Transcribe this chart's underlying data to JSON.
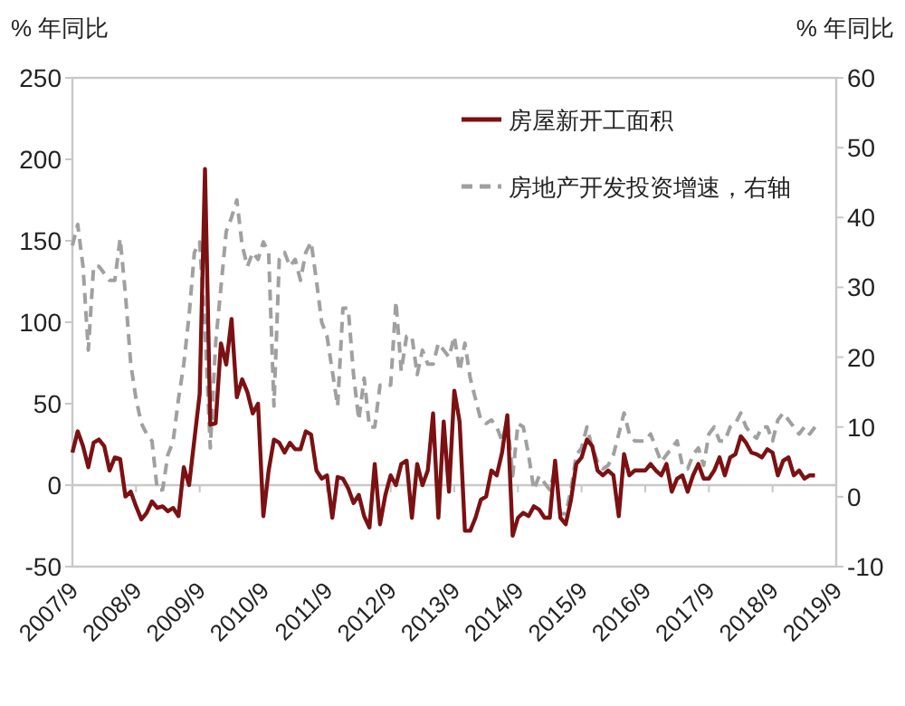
{
  "chart_data": {
    "type": "line",
    "ylabel": "% 年同比",
    "y2label": "% 年同比",
    "legend": "top right",
    "x": [
      "2007-09",
      "2007-10",
      "2007-11",
      "2007-12",
      "2008-01",
      "2008-02",
      "2008-03",
      "2008-04",
      "2008-05",
      "2008-06",
      "2008-07",
      "2008-08",
      "2008-09",
      "2008-10",
      "2008-11",
      "2008-12",
      "2009-01",
      "2009-02",
      "2009-03",
      "2009-04",
      "2009-05",
      "2009-06",
      "2009-07",
      "2009-08",
      "2009-09",
      "2009-10",
      "2009-11",
      "2009-12",
      "2010-01",
      "2010-02",
      "2010-03",
      "2010-04",
      "2010-05",
      "2010-06",
      "2010-07",
      "2010-08",
      "2010-09",
      "2010-10",
      "2010-11",
      "2010-12",
      "2011-01",
      "2011-02",
      "2011-03",
      "2011-04",
      "2011-05",
      "2011-06",
      "2011-07",
      "2011-08",
      "2011-09",
      "2011-10",
      "2011-11",
      "2011-12",
      "2012-01",
      "2012-02",
      "2012-03",
      "2012-04",
      "2012-05",
      "2012-06",
      "2012-07",
      "2012-08",
      "2012-09",
      "2012-10",
      "2012-11",
      "2012-12",
      "2013-01",
      "2013-02",
      "2013-03",
      "2013-04",
      "2013-05",
      "2013-06",
      "2013-07",
      "2013-08",
      "2013-09",
      "2013-10",
      "2013-11",
      "2013-12",
      "2014-01",
      "2014-02",
      "2014-03",
      "2014-04",
      "2014-05",
      "2014-06",
      "2014-07",
      "2014-08",
      "2014-09",
      "2014-10",
      "2014-11",
      "2014-12",
      "2015-01",
      "2015-02",
      "2015-03",
      "2015-04",
      "2015-05",
      "2015-06",
      "2015-07",
      "2015-08",
      "2015-09",
      "2015-10",
      "2015-11",
      "2015-12",
      "2016-01",
      "2016-02",
      "2016-03",
      "2016-04",
      "2016-05",
      "2016-06",
      "2016-07",
      "2016-08",
      "2016-09",
      "2016-10",
      "2016-11",
      "2016-12",
      "2017-01",
      "2017-02",
      "2017-03",
      "2017-04",
      "2017-05",
      "2017-06",
      "2017-07",
      "2017-08",
      "2017-09",
      "2017-10",
      "2017-11",
      "2017-12",
      "2018-01",
      "2018-02",
      "2018-03",
      "2018-04",
      "2018-05",
      "2018-06",
      "2018-07",
      "2018-08",
      "2018-09",
      "2018-10",
      "2018-11",
      "2018-12",
      "2019-01",
      "2019-02",
      "2019-03",
      "2019-04",
      "2019-05"
    ],
    "series": [
      {
        "name": "房屋新开工面积",
        "color": "#7b1113",
        "line_style": "solid",
        "values": [
          20,
          33,
          24,
          11,
          26,
          28,
          24,
          9,
          17,
          16,
          -7,
          -4,
          -13,
          -21,
          -17,
          -10,
          -14,
          -13,
          -16,
          -14,
          -19,
          11,
          0,
          28,
          56,
          194,
          37,
          38,
          87,
          74,
          102,
          54,
          65,
          57,
          44,
          50,
          -19,
          9,
          28,
          26,
          20,
          26,
          22,
          22,
          33,
          31,
          9,
          4,
          6,
          -20,
          5,
          4,
          -2,
          -11,
          -6,
          -19,
          -26,
          13,
          -24,
          -6,
          6,
          0,
          13,
          15,
          -20,
          13,
          0,
          9,
          44,
          -20,
          39,
          -4,
          58,
          39,
          -28,
          -28,
          -20,
          -9,
          -7,
          9,
          6,
          20,
          43,
          -31,
          -20,
          -17,
          -19,
          -13,
          -15,
          -20,
          -20,
          15,
          -20,
          -24,
          -9,
          13,
          17,
          28,
          24,
          9,
          6,
          9,
          6,
          -19,
          19,
          6,
          9,
          9,
          9,
          13,
          9,
          6,
          13,
          -4,
          4,
          6,
          -4,
          6,
          13,
          4,
          4,
          9,
          17,
          6,
          17,
          19,
          30,
          26,
          20,
          19,
          17,
          22,
          20,
          6,
          15,
          17,
          6,
          9,
          4,
          6,
          6
        ]
      },
      {
        "name": "房地产开发投资增速，右轴",
        "color": "#a0a0a0",
        "line_style": "dashed",
        "axis": "y2",
        "values": [
          36,
          39,
          33,
          21,
          33,
          33,
          32,
          31,
          31,
          37,
          29,
          19,
          14,
          10.5,
          9,
          8,
          1,
          1,
          6,
          8,
          14,
          19,
          26,
          35,
          36.5,
          24,
          7,
          22,
          30,
          38,
          40,
          42.5,
          36,
          33,
          35,
          34,
          36.5,
          35,
          13,
          34,
          35,
          33,
          34,
          31,
          35,
          36.5,
          31,
          25,
          23,
          18,
          13,
          27,
          27,
          17.5,
          11,
          17,
          10,
          10,
          16,
          16,
          16,
          28,
          18,
          23,
          23,
          17.5,
          21,
          19,
          19,
          22,
          21,
          20,
          23,
          18,
          22,
          17,
          14,
          11,
          10.5,
          11,
          10,
          8,
          11,
          3,
          10.5,
          10,
          6,
          1,
          3,
          2,
          1,
          4,
          -2.4,
          -2.4,
          1,
          6,
          7,
          10,
          7,
          5,
          4,
          4.5,
          6,
          9,
          12,
          9,
          8,
          8,
          8,
          9,
          7,
          5,
          6,
          7,
          8,
          4.5,
          4,
          6,
          7,
          4.5,
          9,
          10,
          8,
          8,
          10,
          10.5,
          12,
          10,
          9,
          8.4,
          10,
          10,
          8,
          11,
          12,
          11,
          10,
          9,
          10,
          9,
          10
        ]
      }
    ],
    "xlim": [
      "2007-09",
      "2019-09"
    ],
    "xticks": [
      {
        "value": "2007-09",
        "label": "2007/9"
      },
      {
        "value": "2008-09",
        "label": "2008/9"
      },
      {
        "value": "2009-09",
        "label": "2009/9"
      },
      {
        "value": "2010-09",
        "label": "2010/9"
      },
      {
        "value": "2011-09",
        "label": "2011/9"
      },
      {
        "value": "2012-09",
        "label": "2012/9"
      },
      {
        "value": "2013-09",
        "label": "2013/9"
      },
      {
        "value": "2014-09",
        "label": "2014/9"
      },
      {
        "value": "2015-09",
        "label": "2015/9"
      },
      {
        "value": "2016-09",
        "label": "2016/9"
      },
      {
        "value": "2017-09",
        "label": "2017/9"
      },
      {
        "value": "2018-09",
        "label": "2018/9"
      },
      {
        "value": "2019-09",
        "label": "2019/9"
      }
    ],
    "ylim": [
      -50,
      250
    ],
    "yticks": [
      -50,
      0,
      50,
      100,
      150,
      200,
      250
    ],
    "y2lim": [
      -10,
      60
    ],
    "y2ticks": [
      -10,
      0,
      10,
      20,
      30,
      40,
      50,
      60
    ]
  }
}
